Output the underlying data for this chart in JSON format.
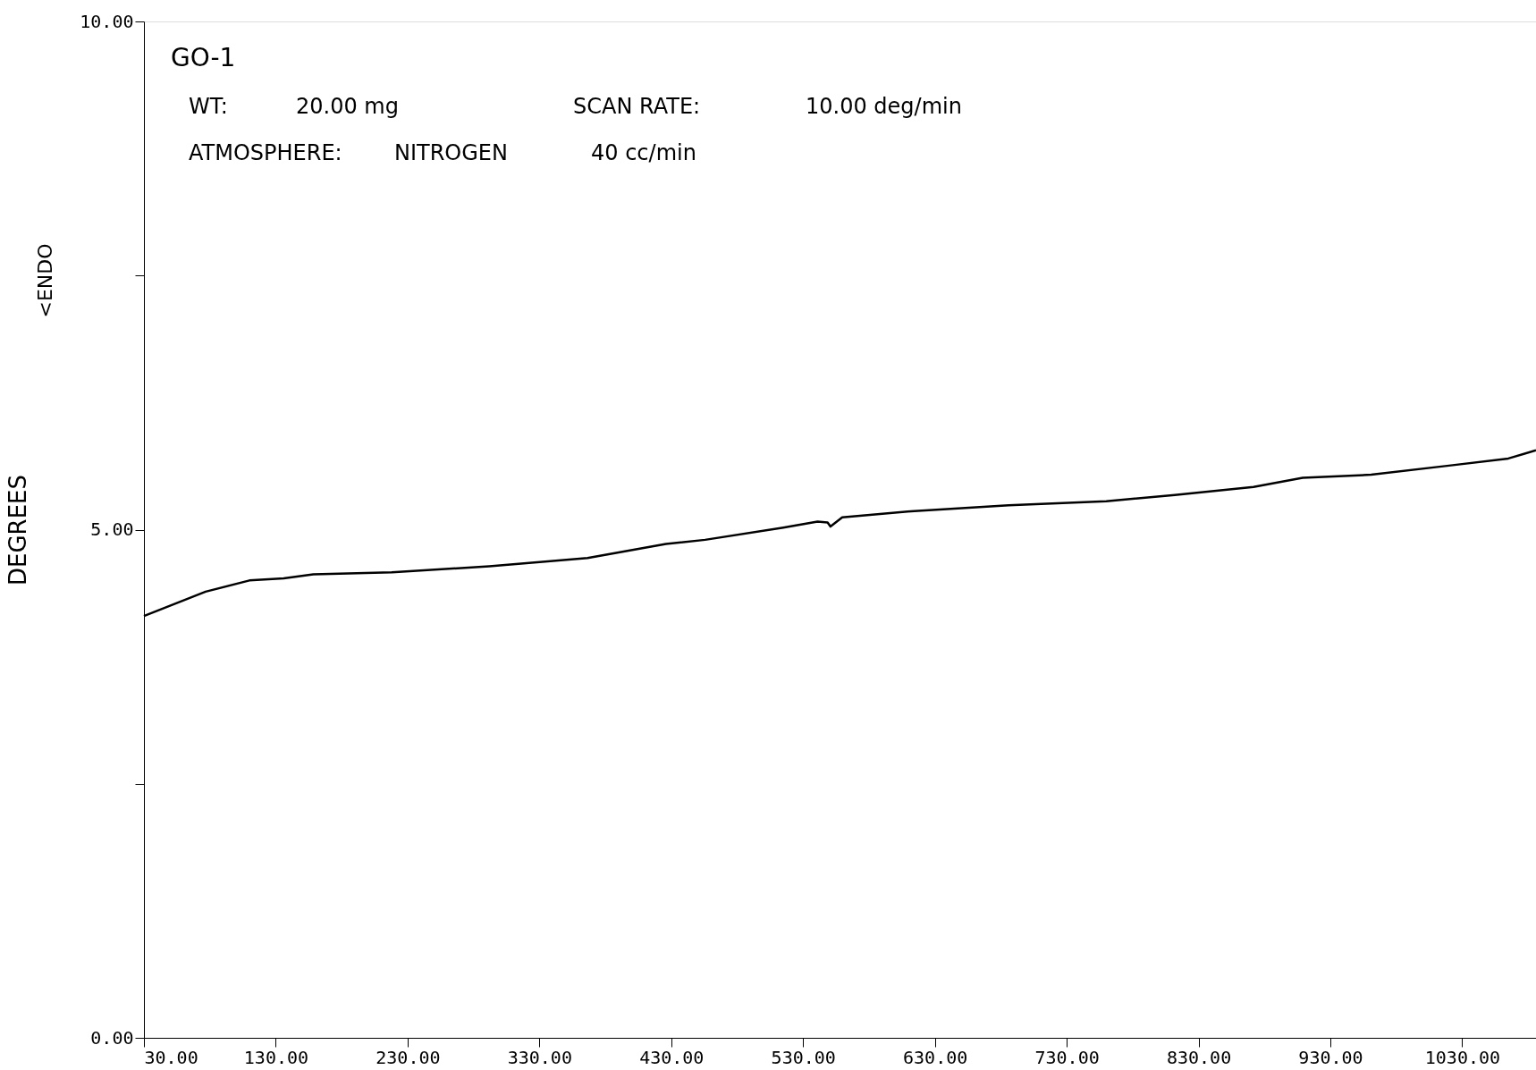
{
  "chart_data": {
    "type": "line",
    "ylabel": "DEGREES",
    "annotations": [
      "GO-1",
      "WT:",
      "20.00 mg",
      "SCAN RATE:",
      "10.00 deg/min",
      "ATMOSPHERE:",
      "NITROGEN",
      "40 cc/min",
      "<ENDO"
    ],
    "x": [
      30,
      76.8,
      110,
      136,
      158.5,
      218,
      292,
      366.5,
      426,
      455.7,
      515,
      541,
      548.6,
      550.8,
      559.7,
      611.7,
      686,
      760,
      812,
      871.7,
      909,
      961,
      1020,
      1065,
      1086
    ],
    "series": [
      {
        "color": "#000000",
        "values": [
          4.15,
          4.39,
          4.5,
          4.52,
          4.56,
          4.58,
          4.64,
          4.72,
          4.86,
          4.9,
          5.02,
          5.08,
          5.07,
          5.03,
          5.12,
          5.18,
          5.24,
          5.28,
          5.34,
          5.42,
          5.51,
          5.54,
          5.63,
          5.7,
          5.78
        ]
      }
    ],
    "xlim": [
      30,
      1086
    ],
    "ylim": [
      0,
      10
    ],
    "xticks": [
      {
        "value": 30,
        "label": "30.00"
      },
      {
        "value": 130,
        "label": "130.00"
      },
      {
        "value": 230,
        "label": "230.00"
      },
      {
        "value": 330,
        "label": "330.00"
      },
      {
        "value": 430,
        "label": "430.00"
      },
      {
        "value": 530,
        "label": "530.00"
      },
      {
        "value": 630,
        "label": "630.00"
      },
      {
        "value": 730,
        "label": "730.00"
      },
      {
        "value": 830,
        "label": "830.00"
      },
      {
        "value": 930,
        "label": "930.00"
      },
      {
        "value": 1030,
        "label": "1030.00"
      }
    ],
    "yticks": [
      {
        "value": 0,
        "label": "0.00"
      },
      {
        "value": 2.5,
        "label": null
      },
      {
        "value": 5,
        "label": "5.00"
      },
      {
        "value": 7.5,
        "label": null
      },
      {
        "value": 10,
        "label": "10.00"
      }
    ],
    "grid": false,
    "legend": false,
    "marker": "none",
    "line_style": "solid"
  }
}
